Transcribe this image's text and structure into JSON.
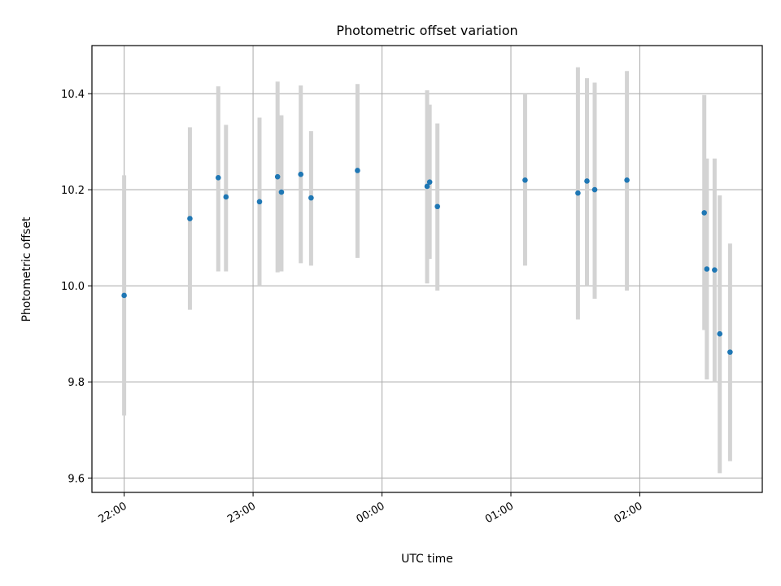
{
  "chart_data": {
    "type": "scatter",
    "title": "Photometric offset variation",
    "xlabel": "UTC time",
    "ylabel": "Photometric offset",
    "grid": true,
    "x_ticks": [
      "22:00",
      "23:00",
      "00:00",
      "01:00",
      "02:00"
    ],
    "x_tick_values_hours": [
      0,
      1,
      2,
      3,
      4
    ],
    "x_unit_note": "hours after 22:00 UTC",
    "xlim_hours": [
      -0.25,
      4.95
    ],
    "y_ticks": [
      9.6,
      9.8,
      10.0,
      10.2,
      10.4
    ],
    "ylim": [
      9.57,
      10.5
    ],
    "colors": {
      "point": "#1f77b4",
      "errorbar": "#d3d3d3",
      "grid": "#b0b0b0"
    },
    "points": [
      {
        "x": 0.0,
        "y": 9.98,
        "ylo": 9.73,
        "yhi": 10.23
      },
      {
        "x": 0.51,
        "y": 10.14,
        "ylo": 9.95,
        "yhi": 10.33
      },
      {
        "x": 0.73,
        "y": 10.225,
        "ylo": 10.03,
        "yhi": 10.415
      },
      {
        "x": 0.79,
        "y": 10.185,
        "ylo": 10.03,
        "yhi": 10.335
      },
      {
        "x": 1.05,
        "y": 10.175,
        "ylo": 10.0,
        "yhi": 10.35
      },
      {
        "x": 1.19,
        "y": 10.227,
        "ylo": 10.028,
        "yhi": 10.425
      },
      {
        "x": 1.22,
        "y": 10.195,
        "ylo": 10.03,
        "yhi": 10.355
      },
      {
        "x": 1.37,
        "y": 10.232,
        "ylo": 10.047,
        "yhi": 10.417
      },
      {
        "x": 1.45,
        "y": 10.183,
        "ylo": 10.042,
        "yhi": 10.322
      },
      {
        "x": 1.81,
        "y": 10.24,
        "ylo": 10.058,
        "yhi": 10.42
      },
      {
        "x": 2.35,
        "y": 10.207,
        "ylo": 10.005,
        "yhi": 10.407
      },
      {
        "x": 2.37,
        "y": 10.216,
        "ylo": 10.056,
        "yhi": 10.377
      },
      {
        "x": 2.43,
        "y": 10.165,
        "ylo": 9.99,
        "yhi": 10.338
      },
      {
        "x": 3.11,
        "y": 10.22,
        "ylo": 10.042,
        "yhi": 10.4
      },
      {
        "x": 3.52,
        "y": 10.193,
        "ylo": 9.93,
        "yhi": 10.455
      },
      {
        "x": 3.59,
        "y": 10.218,
        "ylo": 10.0,
        "yhi": 10.432
      },
      {
        "x": 3.65,
        "y": 10.2,
        "ylo": 9.973,
        "yhi": 10.423
      },
      {
        "x": 3.9,
        "y": 10.22,
        "ylo": 9.99,
        "yhi": 10.447
      },
      {
        "x": 4.5,
        "y": 10.152,
        "ylo": 9.908,
        "yhi": 10.397
      },
      {
        "x": 4.52,
        "y": 10.035,
        "ylo": 9.805,
        "yhi": 10.265
      },
      {
        "x": 4.58,
        "y": 10.033,
        "ylo": 9.8,
        "yhi": 10.265
      },
      {
        "x": 4.62,
        "y": 9.9,
        "ylo": 9.61,
        "yhi": 10.188
      },
      {
        "x": 4.7,
        "y": 9.862,
        "ylo": 9.635,
        "yhi": 10.088
      }
    ]
  }
}
